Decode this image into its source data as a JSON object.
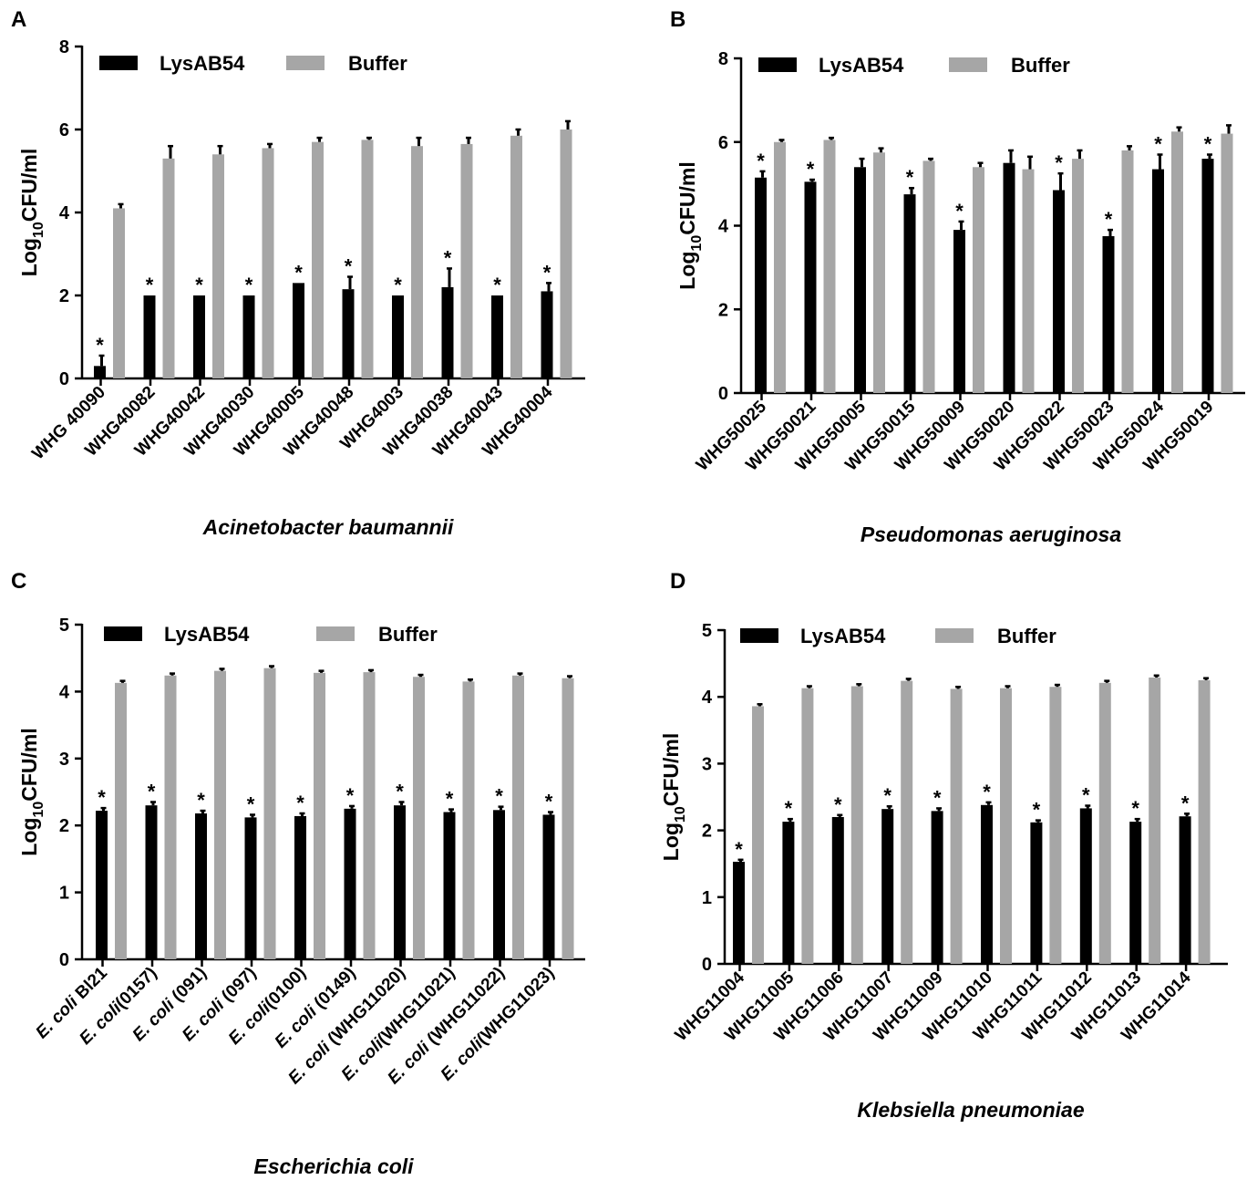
{
  "colors": {
    "lys": "#000000",
    "buffer": "#a6a6a6",
    "axis": "#000000"
  },
  "legend": {
    "lys": "LysAB54",
    "buffer": "Buffer"
  },
  "ylabel": {
    "prefix": "Log",
    "sub": "10",
    "suffix": "CFU/ml"
  },
  "chart_data": [
    {
      "panel": "A",
      "type": "bar",
      "title": "Acinetobacter baumannii",
      "ylim": [
        0,
        8
      ],
      "yticks": [
        "0",
        "2",
        "4",
        "6",
        "8"
      ],
      "categories": [
        "WHG 40090",
        "WHG40082",
        "WHG40042",
        "WHG40030",
        "WHG40005",
        "WHG40048",
        "WHG4003",
        "WHG40038",
        "WHG40043",
        "WHG40004"
      ],
      "series": [
        {
          "name": "LysAB54",
          "values": [
            0.3,
            2.0,
            2.0,
            2.0,
            2.3,
            2.15,
            2.0,
            2.2,
            2.0,
            2.1
          ],
          "errors": [
            0.25,
            0.0,
            0.0,
            0.0,
            0.0,
            0.3,
            0.0,
            0.45,
            0.0,
            0.2
          ]
        },
        {
          "name": "Buffer",
          "values": [
            4.1,
            5.3,
            5.4,
            5.55,
            5.7,
            5.75,
            5.6,
            5.65,
            5.85,
            6.0
          ],
          "errors": [
            0.1,
            0.3,
            0.2,
            0.1,
            0.1,
            0.05,
            0.2,
            0.15,
            0.15,
            0.2
          ]
        }
      ],
      "significant": [
        true,
        true,
        true,
        true,
        true,
        true,
        true,
        true,
        true,
        true
      ],
      "significance_label": "*"
    },
    {
      "panel": "B",
      "type": "bar",
      "title": "Pseudomonas aeruginosa",
      "ylim": [
        0,
        8
      ],
      "yticks": [
        "0",
        "2",
        "4",
        "6",
        "8"
      ],
      "categories": [
        "WHG50025",
        "WHG50021",
        "WHG50005",
        "WHG50015",
        "WHG50009",
        "WHG50020",
        "WHG50022",
        "WHG50023",
        "WHG50024",
        "WHG50019"
      ],
      "series": [
        {
          "name": "LysAB54",
          "values": [
            5.15,
            5.05,
            5.4,
            4.75,
            3.9,
            5.5,
            4.85,
            3.75,
            5.35,
            5.6
          ],
          "errors": [
            0.15,
            0.05,
            0.2,
            0.15,
            0.2,
            0.3,
            0.4,
            0.15,
            0.35,
            0.1
          ]
        },
        {
          "name": "Buffer",
          "values": [
            6.0,
            6.05,
            5.75,
            5.55,
            5.4,
            5.35,
            5.6,
            5.8,
            6.25,
            6.2
          ],
          "errors": [
            0.05,
            0.05,
            0.1,
            0.05,
            0.1,
            0.3,
            0.2,
            0.1,
            0.1,
            0.2
          ]
        }
      ],
      "significant": [
        true,
        true,
        false,
        true,
        true,
        false,
        true,
        true,
        true,
        true
      ],
      "significance_label": "*"
    },
    {
      "panel": "C",
      "type": "bar",
      "title": "Escherichia coli",
      "ylim": [
        0,
        5
      ],
      "yticks": [
        "0",
        "1",
        "2",
        "3",
        "4",
        "5"
      ],
      "categories": [
        "E. coli Bl21",
        "E. coli(0157)",
        "E. coli (091)",
        "E. coli (097)",
        "E. coli(0100)",
        "E. coli (0149)",
        "E. coli (WHG11020)",
        "E. coli(WHG11021)",
        "E. coli (WHG11022)",
        "E. coli(WHG11023)"
      ],
      "category_parts": [
        {
          "it": "E. coli",
          "rest": " Bl21"
        },
        {
          "it": "E. coli",
          "rest": "(0157)"
        },
        {
          "it": "E. coli",
          "rest": " (091)"
        },
        {
          "it": "E. coli",
          "rest": " (097)"
        },
        {
          "it": "E. coli",
          "rest": "(0100)"
        },
        {
          "it": "E. coli",
          "rest": " (0149)"
        },
        {
          "it": "E. coli",
          "rest": " (WHG11020)"
        },
        {
          "it": "E. coli",
          "rest": "(WHG11021)"
        },
        {
          "it": "E. coli",
          "rest": " (WHG11022)"
        },
        {
          "it": "E. coli",
          "rest": "(WHG11023)"
        }
      ],
      "series": [
        {
          "name": "LysAB54",
          "values": [
            2.22,
            2.3,
            2.18,
            2.12,
            2.14,
            2.25,
            2.3,
            2.2,
            2.23,
            2.16
          ],
          "errors": [
            0.04,
            0.05,
            0.04,
            0.04,
            0.04,
            0.04,
            0.05,
            0.04,
            0.05,
            0.04
          ]
        },
        {
          "name": "Buffer",
          "values": [
            4.13,
            4.24,
            4.31,
            4.35,
            4.28,
            4.29,
            4.22,
            4.15,
            4.24,
            4.2
          ],
          "errors": [
            0.03,
            0.03,
            0.03,
            0.03,
            0.03,
            0.03,
            0.03,
            0.03,
            0.03,
            0.03
          ]
        }
      ],
      "significant": [
        true,
        true,
        true,
        true,
        true,
        true,
        true,
        true,
        true,
        true
      ],
      "significance_label": "*"
    },
    {
      "panel": "D",
      "type": "bar",
      "title": "Klebsiella pneumoniae",
      "ylim": [
        0,
        5
      ],
      "yticks": [
        "0",
        "1",
        "2",
        "3",
        "4",
        "5"
      ],
      "categories": [
        "WHG11004",
        "WHG11005",
        "WHG11006",
        "WHG11007",
        "WHG11009",
        "WHG11010",
        "WHG11011",
        "WHG11012",
        "WHG11013",
        "WHG11014"
      ],
      "series": [
        {
          "name": "LysAB54",
          "values": [
            1.53,
            2.13,
            2.2,
            2.32,
            2.29,
            2.38,
            2.12,
            2.33,
            2.13,
            2.21
          ],
          "errors": [
            0.03,
            0.04,
            0.03,
            0.04,
            0.04,
            0.04,
            0.03,
            0.04,
            0.04,
            0.04
          ]
        },
        {
          "name": "Buffer",
          "values": [
            3.86,
            4.13,
            4.16,
            4.24,
            4.12,
            4.13,
            4.15,
            4.21,
            4.29,
            4.25
          ],
          "errors": [
            0.03,
            0.03,
            0.03,
            0.03,
            0.03,
            0.03,
            0.03,
            0.03,
            0.03,
            0.03
          ]
        }
      ],
      "significant": [
        true,
        true,
        true,
        true,
        true,
        true,
        true,
        true,
        true,
        true
      ],
      "significance_label": "*"
    }
  ]
}
